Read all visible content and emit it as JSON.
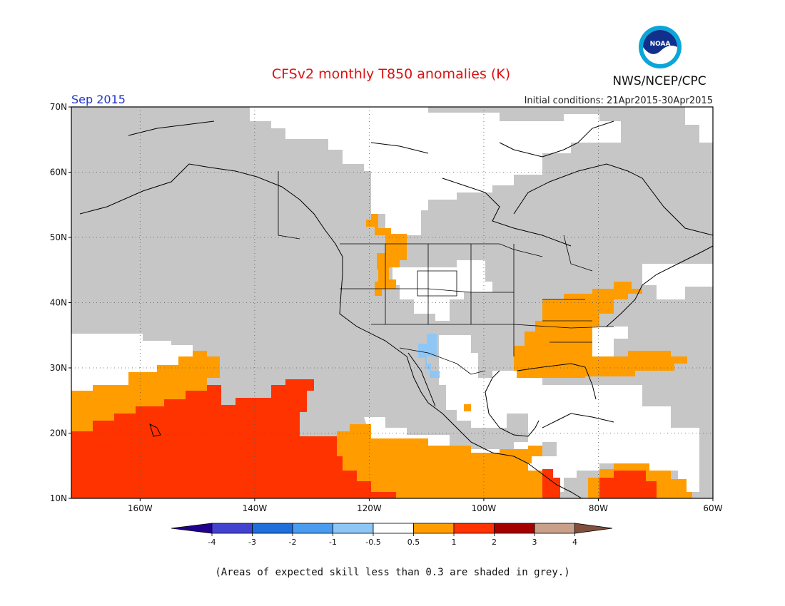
{
  "header": {
    "title": "CFSv2 monthly T850 anomalies (K)",
    "title_color": "#dd1111",
    "valid_month": "Sep 2015",
    "valid_month_color": "#2233cc",
    "initial_conditions": "Initial conditions: 21Apr2015-30Apr2015",
    "agency": "NWS/NCEP/CPC",
    "logo_text": "NOAA"
  },
  "map": {
    "lat_labels": [
      "70N",
      "60N",
      "50N",
      "40N",
      "30N",
      "20N",
      "10N"
    ],
    "lon_labels": [
      "160W",
      "140W",
      "120W",
      "100W",
      "80W",
      "60W"
    ],
    "grey_color": "#c6c6c6",
    "background_color": "#ffffff"
  },
  "colorbar": {
    "colors": [
      "#21008f",
      "#4242d0",
      "#1e6edc",
      "#4a9cf0",
      "#8ec7f5",
      "#ffffff",
      "#ff9d00",
      "#ff3300",
      "#a50000",
      "#c9a08a",
      "#80503d"
    ],
    "labels": [
      "-4",
      "-3",
      "-2",
      "-1",
      "-0.5",
      "0.5",
      "1",
      "2",
      "3",
      "4"
    ]
  },
  "footer": {
    "note": "(Areas of expected skill less than 0.3 are shaded in grey.)"
  }
}
